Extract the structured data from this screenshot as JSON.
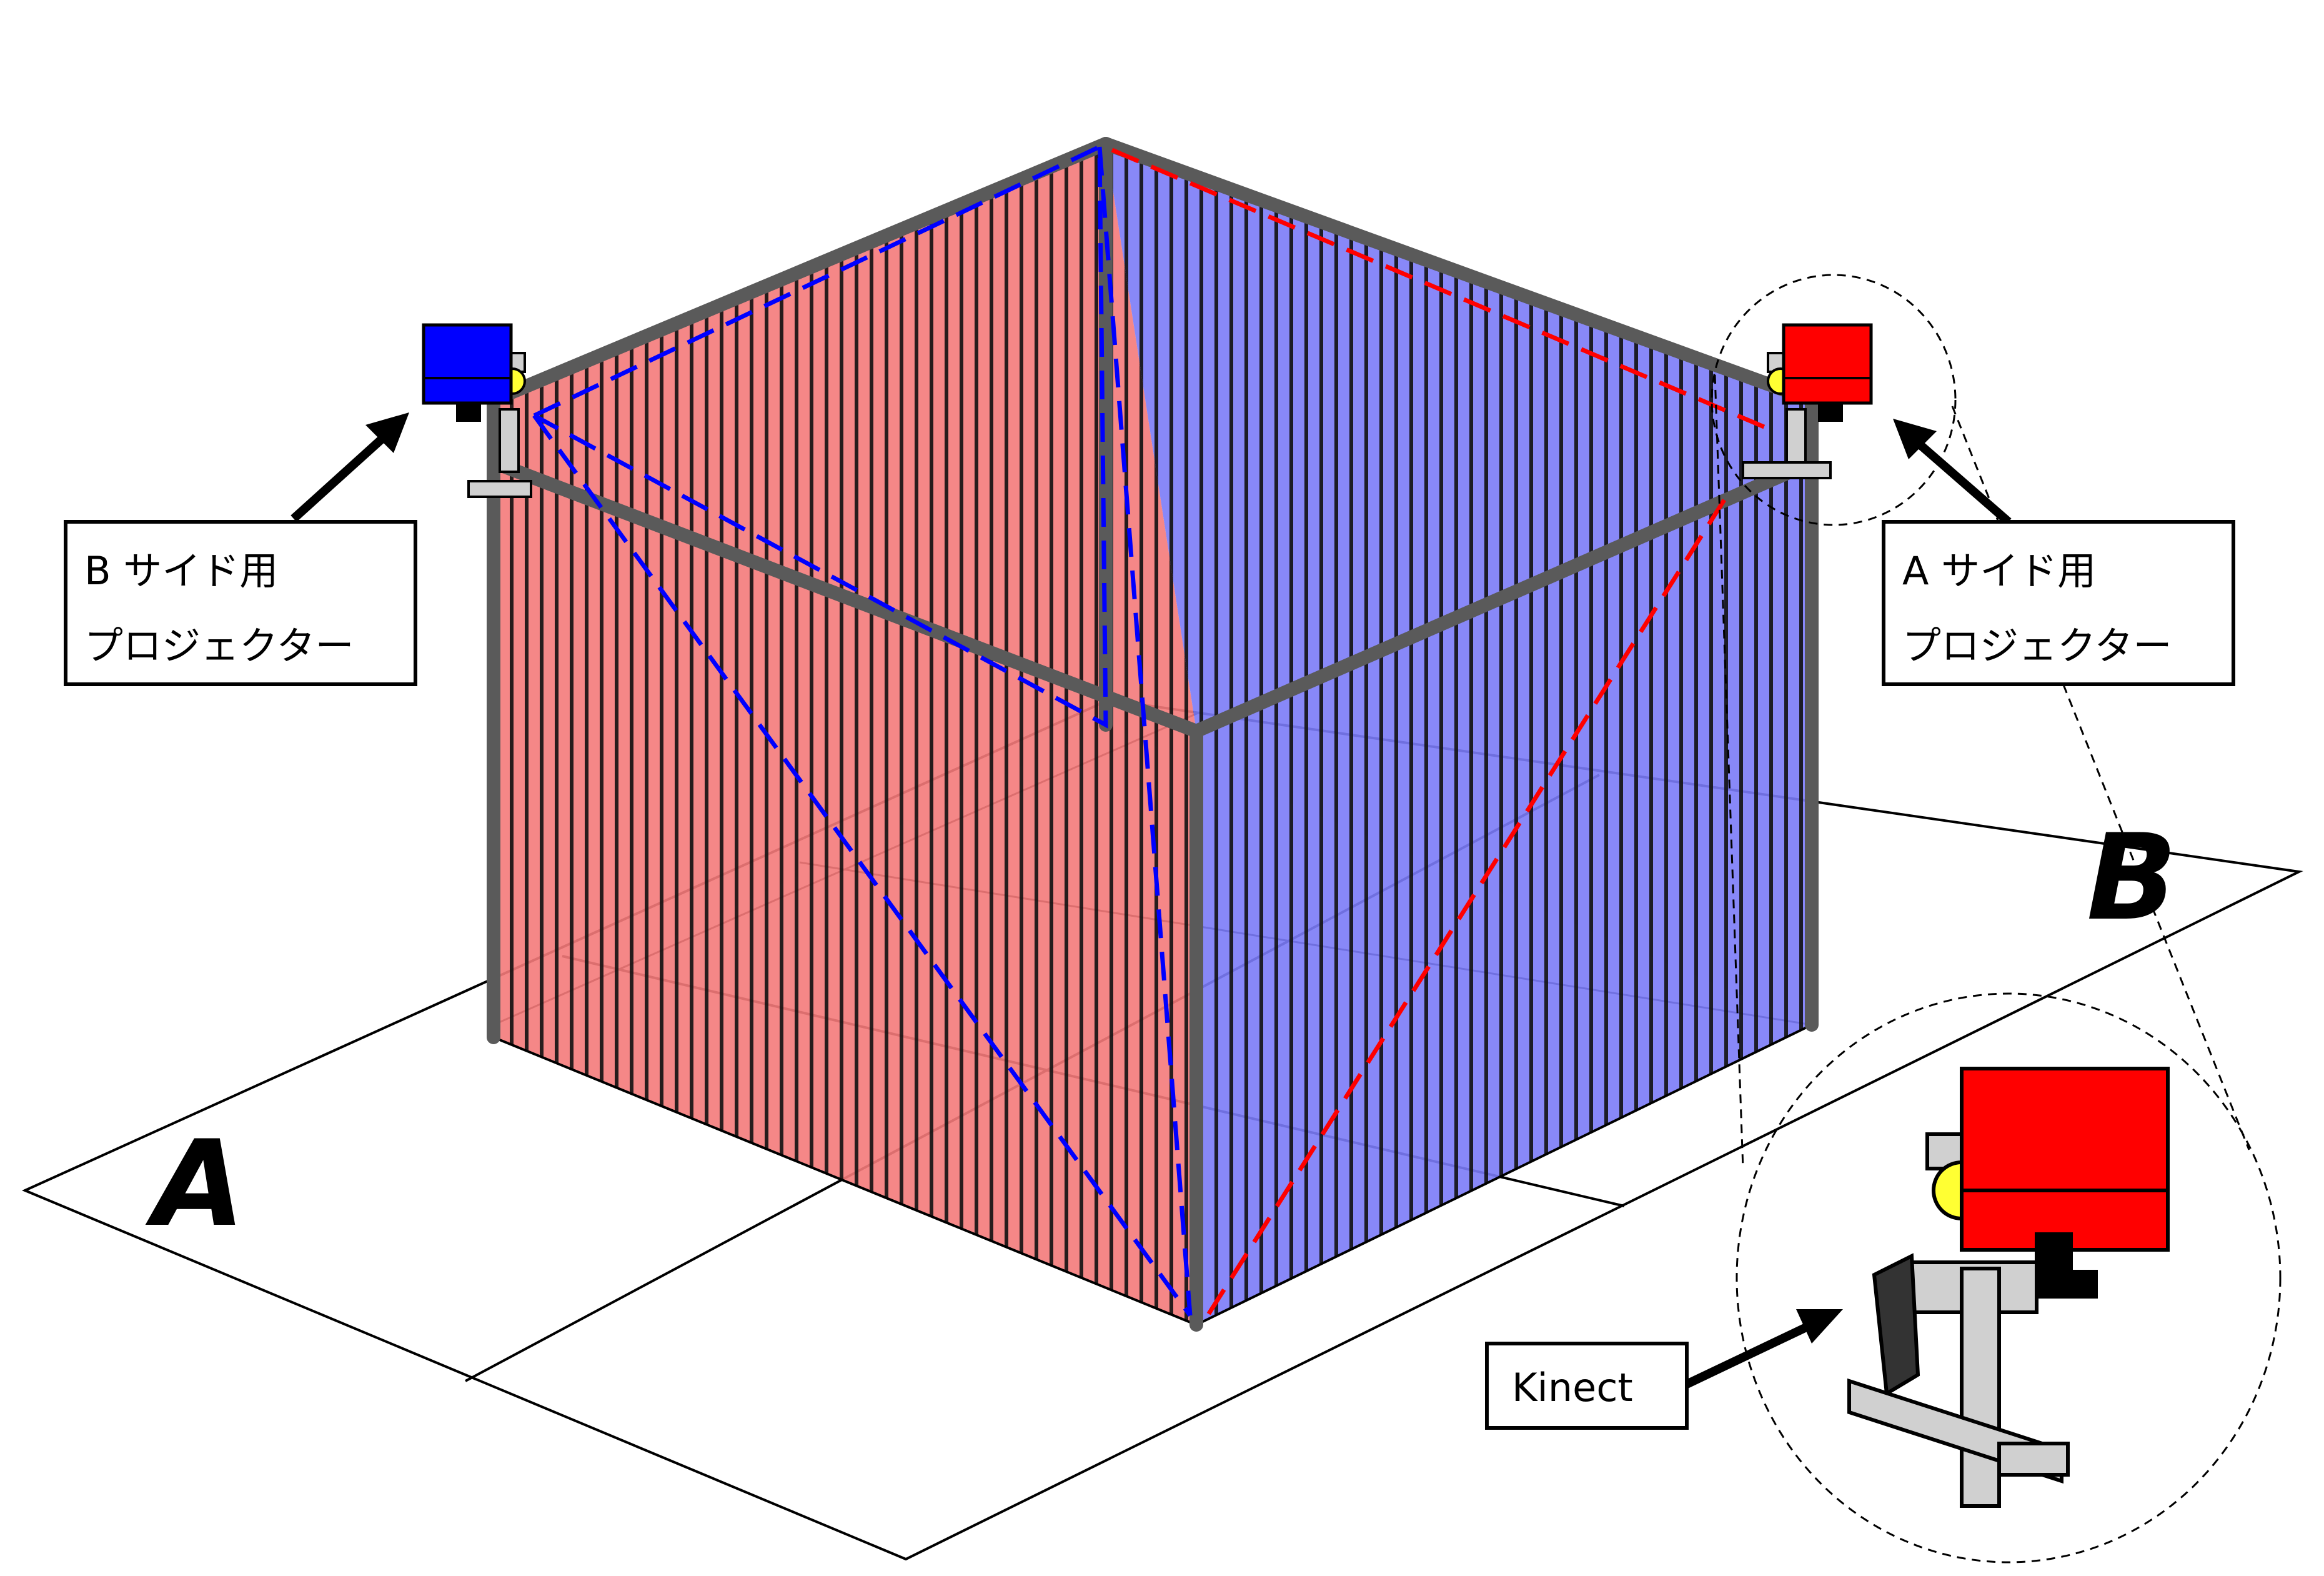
{
  "zones": {
    "a": "A",
    "b": "B"
  },
  "labels": {
    "projector_b": {
      "line1": "B サイド用",
      "line2": "プロジェクター"
    },
    "projector_a": {
      "line1": "A サイド用",
      "line2": "プロジェクター"
    },
    "kinect": "Kinect"
  },
  "colors": {
    "screen_a": "#f47a7a",
    "screen_b": "#7b7bf7",
    "projector_a": "#ff0000",
    "projector_b": "#0000ff",
    "frame": "#5a5a5a",
    "mount": "#d0d0d0",
    "lens": "#ffff33"
  }
}
